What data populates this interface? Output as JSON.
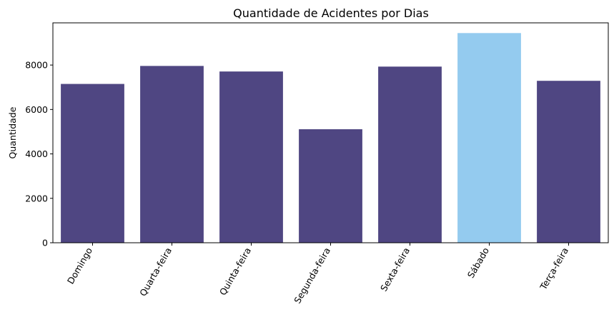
{
  "chart_data": {
    "type": "bar",
    "title": "Quantidade de Acidentes por Dias",
    "xlabel": "",
    "ylabel": "Quantidade",
    "categories": [
      "Domingo",
      "Quarta-feira",
      "Quinta-feira",
      "Segunda-feira",
      "Sexta-feira",
      "Sábado",
      "Terça-feira"
    ],
    "values": [
      7150,
      7960,
      7710,
      5110,
      7930,
      9440,
      7290
    ],
    "colors": [
      "#4f4682",
      "#4f4682",
      "#4f4682",
      "#4f4682",
      "#4f4682",
      "#94cbef",
      "#4f4682"
    ],
    "highlight_category": "Sábado",
    "ylim": [
      0,
      9900
    ],
    "yticks": [
      0,
      2000,
      4000,
      6000,
      8000
    ],
    "ytick_labels": [
      "0",
      "2000",
      "4000",
      "6000",
      "8000"
    ],
    "grid": false,
    "legend": "none"
  }
}
